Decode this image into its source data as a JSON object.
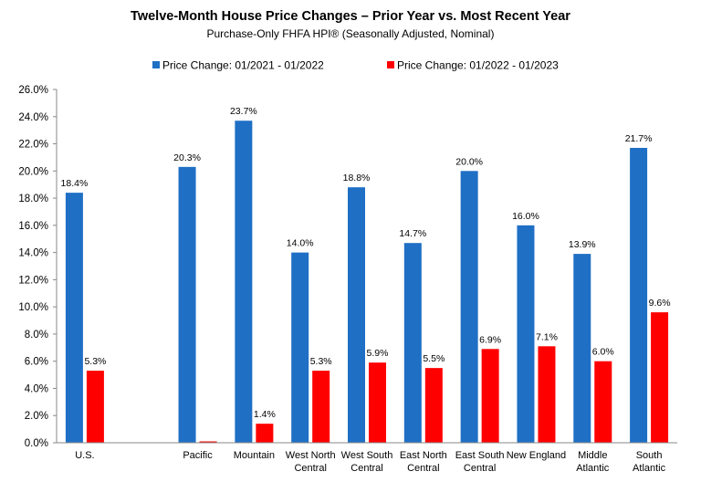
{
  "chart_data": {
    "type": "bar",
    "title": "Twelve-Month House Price Changes – Prior Year vs. Most Recent Year",
    "subtitle": "Purchase-Only FHFA HPI® (Seasonally Adjusted, Nominal)",
    "xlabel": "",
    "ylabel": "",
    "ylim": [
      0,
      26
    ],
    "yticks": [
      "0.0%",
      "2.0%",
      "4.0%",
      "6.0%",
      "8.0%",
      "10.0%",
      "12.0%",
      "14.0%",
      "16.0%",
      "18.0%",
      "20.0%",
      "22.0%",
      "24.0%",
      "26.0%"
    ],
    "legend_position": "top",
    "grid": false,
    "slots": [
      {
        "label": [
          "U.S."
        ],
        "values": [
          18.4,
          5.3
        ],
        "labels": [
          "18.4%",
          "5.3%"
        ]
      },
      null,
      {
        "label": [
          "Pacific"
        ],
        "values": [
          20.3,
          0.1
        ],
        "labels": [
          "20.3%",
          ""
        ]
      },
      {
        "label": [
          "Mountain"
        ],
        "values": [
          23.7,
          1.4
        ],
        "labels": [
          "23.7%",
          "1.4%"
        ]
      },
      {
        "label": [
          "West North",
          "Central"
        ],
        "values": [
          14.0,
          5.3
        ],
        "labels": [
          "14.0%",
          "5.3%"
        ]
      },
      {
        "label": [
          "West South",
          "Central"
        ],
        "values": [
          18.8,
          5.9
        ],
        "labels": [
          "18.8%",
          "5.9%"
        ]
      },
      {
        "label": [
          "East North",
          "Central"
        ],
        "values": [
          14.7,
          5.5
        ],
        "labels": [
          "14.7%",
          "5.5%"
        ]
      },
      {
        "label": [
          "East South",
          "Central"
        ],
        "values": [
          20.0,
          6.9
        ],
        "labels": [
          "20.0%",
          "6.9%"
        ]
      },
      {
        "label": [
          "New England"
        ],
        "values": [
          16.0,
          7.1
        ],
        "labels": [
          "16.0%",
          "7.1%"
        ]
      },
      {
        "label": [
          "Middle",
          "Atlantic"
        ],
        "values": [
          13.9,
          6.0
        ],
        "labels": [
          "13.9%",
          "6.0%"
        ]
      },
      {
        "label": [
          "South",
          "Atlantic"
        ],
        "values": [
          21.7,
          9.6
        ],
        "labels": [
          "21.7%",
          "9.6%"
        ]
      }
    ],
    "series": [
      {
        "name": "Price Change:  01/2021 - 01/2022",
        "color": "#1F6FC5"
      },
      {
        "name": "Price Change:  01/2022 - 01/2023",
        "color": "#FF0000"
      }
    ]
  }
}
